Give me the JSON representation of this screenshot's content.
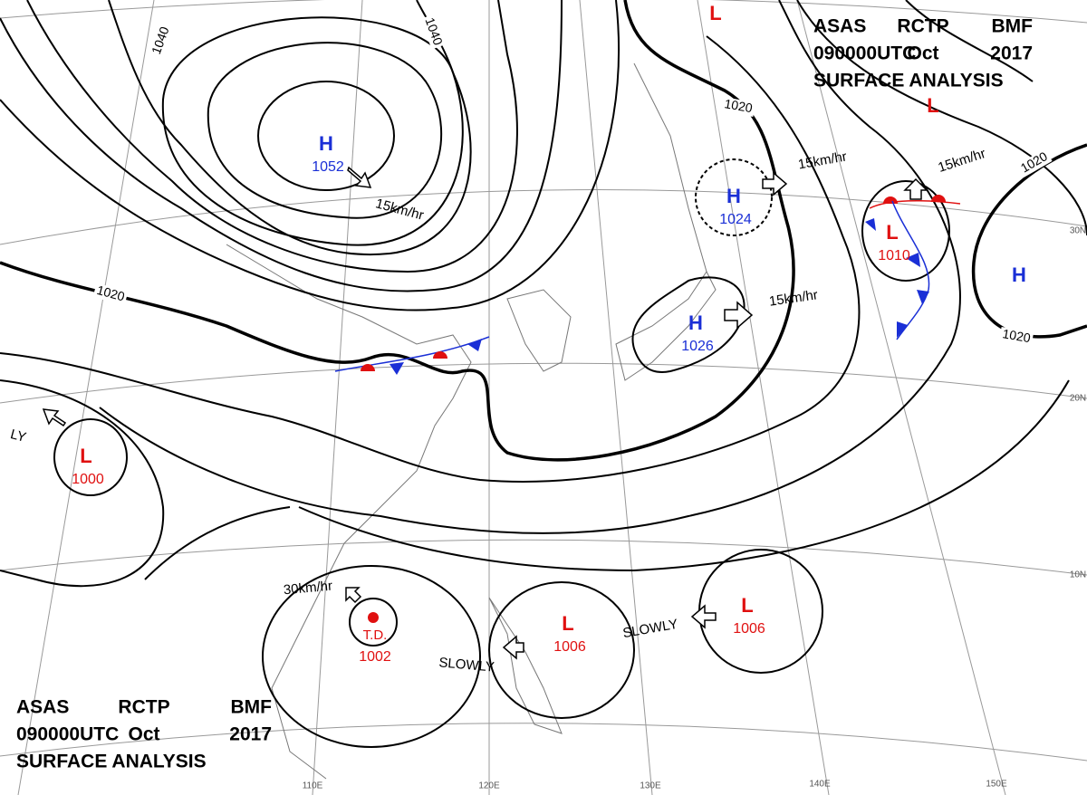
{
  "header": {
    "line1": [
      "ASAS",
      "RCTP",
      "BMF"
    ],
    "line2": [
      "090000UTC",
      "Oct",
      "2017"
    ],
    "line3": "SURFACE ANALYSIS"
  },
  "systems": [
    {
      "symbol": "H",
      "pressure": 1052,
      "color": "#1a2fd6"
    },
    {
      "symbol": "H",
      "pressure": 1024,
      "color": "#1a2fd6"
    },
    {
      "symbol": "H",
      "pressure": 1026,
      "color": "#1a2fd6"
    },
    {
      "symbol": "H",
      "color": "#1a2fd6"
    },
    {
      "symbol": "L",
      "pressure": 1010,
      "color": "#e01010"
    },
    {
      "symbol": "L",
      "color": "#e01010"
    },
    {
      "symbol": "L",
      "color": "#e01010"
    },
    {
      "symbol": "L",
      "pressure": 1000,
      "color": "#e01010"
    },
    {
      "symbol": "T.D.",
      "pressure": 1002,
      "color": "#e01010"
    },
    {
      "symbol": "L",
      "pressure": 1006,
      "color": "#e01010"
    },
    {
      "symbol": "L",
      "pressure": 1006,
      "color": "#e01010"
    }
  ],
  "isobar_labels": [
    1040,
    1040,
    1020,
    1020,
    1020,
    1020
  ],
  "motions": [
    "15km/hr",
    "15km/hr",
    "15km/hr",
    "15km/hr",
    "30km/hr",
    "SLOWLY",
    "SLOWLY",
    "LY"
  ],
  "latitudes": [
    "30N",
    "20N",
    "10N"
  ],
  "longitudes": [
    "110E",
    "120E",
    "130E",
    "140E",
    "150E"
  ]
}
